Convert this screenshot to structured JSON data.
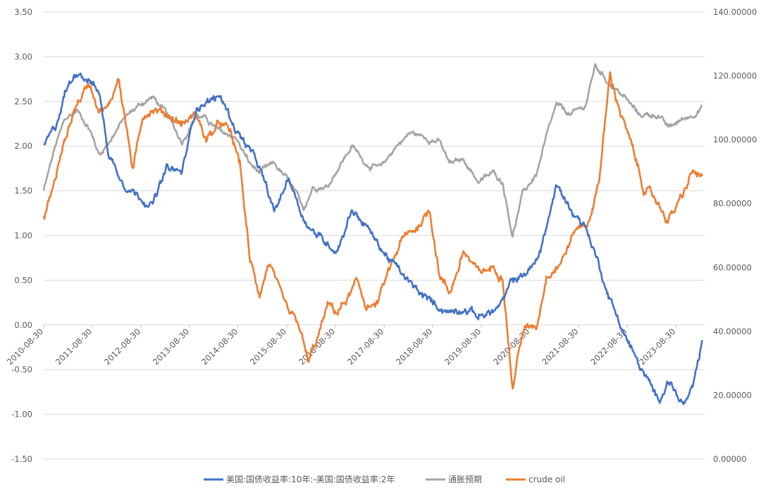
{
  "chart_data": {
    "type": "line",
    "title": "",
    "y_left": {
      "min": -1.5,
      "max": 3.5,
      "step": 0.5,
      "ticks": [
        "3.50",
        "3.00",
        "2.50",
        "2.00",
        "1.50",
        "1.00",
        "0.50",
        "0.00",
        "-0.50",
        "-1.00",
        "-1.50"
      ]
    },
    "y_right": {
      "min": 0,
      "max": 140,
      "step": 20,
      "ticks": [
        "140.00000",
        "120.00000",
        "100.00000",
        "80.00000",
        "60.00000",
        "40.00000",
        "20.00000",
        "0.00000"
      ]
    },
    "x_tick_labels": [
      "2010-08-30",
      "2011-08-30",
      "2012-08-30",
      "2013-08-30",
      "2014-08-30",
      "2015-08-30",
      "2016-08-30",
      "2017-08-30",
      "2018-08-30",
      "2019-08-30",
      "2020-08-30",
      "2021-08-30",
      "2022-08-30",
      "2023-08-30"
    ],
    "grid": "horizontal",
    "legend_position": "bottom",
    "series": [
      {
        "name": "美国:国债收益率:10年:-美国:国债收益率:2年",
        "axis": "left",
        "color": "#4472c4",
        "x": [
          2010.66,
          2010.9,
          2011.1,
          2011.35,
          2011.6,
          2011.8,
          2012.0,
          2012.3,
          2012.6,
          2012.9,
          2013.2,
          2013.5,
          2013.8,
          2014.0,
          2014.3,
          2014.6,
          2014.9,
          2015.1,
          2015.4,
          2015.7,
          2016.0,
          2016.2,
          2016.5,
          2016.7,
          2017.0,
          2017.3,
          2017.6,
          2017.9,
          2018.2,
          2018.5,
          2018.8,
          2019.0,
          2019.3,
          2019.6,
          2019.9,
          2020.1,
          2020.3,
          2020.5,
          2020.8,
          2021.0,
          2021.2,
          2021.5,
          2021.8,
          2022.0,
          2022.3,
          2022.6,
          2022.9,
          2023.1,
          2023.3,
          2023.5,
          2023.8,
          2024.0,
          2024.2
        ],
        "y": [
          2.0,
          2.2,
          2.6,
          2.85,
          2.75,
          2.6,
          1.9,
          1.6,
          1.45,
          1.35,
          1.75,
          1.7,
          2.45,
          2.5,
          2.55,
          2.2,
          1.95,
          1.75,
          1.25,
          1.65,
          1.2,
          1.05,
          0.9,
          0.85,
          1.3,
          1.1,
          0.85,
          0.65,
          0.45,
          0.3,
          0.2,
          0.15,
          0.2,
          0.1,
          0.15,
          0.25,
          0.5,
          0.55,
          0.7,
          1.1,
          1.55,
          1.3,
          1.1,
          0.8,
          0.3,
          -0.1,
          -0.45,
          -0.65,
          -0.85,
          -0.6,
          -0.9,
          -0.75,
          -0.2
        ]
      },
      {
        "name": "通胀预期",
        "axis": "left",
        "color": "#a5a5a5",
        "x": [
          2010.66,
          2010.9,
          2011.1,
          2011.35,
          2011.6,
          2011.8,
          2012.0,
          2012.3,
          2012.6,
          2012.9,
          2013.2,
          2013.5,
          2013.8,
          2014.0,
          2014.3,
          2014.6,
          2014.9,
          2015.1,
          2015.4,
          2015.7,
          2016.0,
          2016.2,
          2016.5,
          2016.7,
          2017.0,
          2017.3,
          2017.6,
          2017.9,
          2018.2,
          2018.5,
          2018.8,
          2019.0,
          2019.3,
          2019.6,
          2019.9,
          2020.1,
          2020.3,
          2020.5,
          2020.8,
          2021.0,
          2021.2,
          2021.5,
          2021.8,
          2022.0,
          2022.3,
          2022.6,
          2022.9,
          2023.1,
          2023.3,
          2023.5,
          2023.8,
          2024.0,
          2024.2
        ],
        "y": [
          1.5,
          2.0,
          2.3,
          2.4,
          2.2,
          1.9,
          2.05,
          2.3,
          2.45,
          2.55,
          2.35,
          2.05,
          2.35,
          2.3,
          2.15,
          2.1,
          1.8,
          1.7,
          1.8,
          1.6,
          1.3,
          1.55,
          1.55,
          1.75,
          2.0,
          1.8,
          1.75,
          2.0,
          2.15,
          2.1,
          2.05,
          1.8,
          1.85,
          1.6,
          1.7,
          1.6,
          1.0,
          1.45,
          1.7,
          2.1,
          2.45,
          2.35,
          2.45,
          2.9,
          2.7,
          2.55,
          2.35,
          2.35,
          2.35,
          2.2,
          2.3,
          2.35,
          2.45
        ]
      },
      {
        "name": "crude oil",
        "axis": "right",
        "color": "#ed7d31",
        "x": [
          2010.66,
          2010.85,
          2011.1,
          2011.3,
          2011.6,
          2011.8,
          2012.0,
          2012.2,
          2012.4,
          2012.5,
          2012.7,
          2012.9,
          2013.2,
          2013.5,
          2013.8,
          2014.0,
          2014.3,
          2014.5,
          2014.7,
          2014.9,
          2015.1,
          2015.3,
          2015.5,
          2015.7,
          2015.9,
          2016.1,
          2016.3,
          2016.5,
          2016.7,
          2016.9,
          2017.1,
          2017.3,
          2017.5,
          2017.8,
          2018.0,
          2018.3,
          2018.6,
          2018.8,
          2019.0,
          2019.3,
          2019.6,
          2019.9,
          2020.1,
          2020.3,
          2020.5,
          2020.8,
          2021.0,
          2021.3,
          2021.6,
          2021.9,
          2022.1,
          2022.3,
          2022.5,
          2022.8,
          2023.0,
          2023.3,
          2023.5,
          2023.8,
          2024.0,
          2024.2
        ],
        "y": [
          75,
          85,
          100,
          110,
          118,
          110,
          110,
          120,
          100,
          90,
          108,
          110,
          108,
          105,
          108,
          100,
          105,
          102,
          92,
          62,
          52,
          62,
          52,
          45,
          42,
          30,
          38,
          48,
          46,
          50,
          55,
          48,
          48,
          60,
          68,
          72,
          78,
          58,
          52,
          65,
          58,
          60,
          58,
          22,
          40,
          42,
          58,
          62,
          72,
          75,
          90,
          120,
          110,
          95,
          85,
          80,
          75,
          82,
          90,
          88
        ]
      }
    ]
  }
}
